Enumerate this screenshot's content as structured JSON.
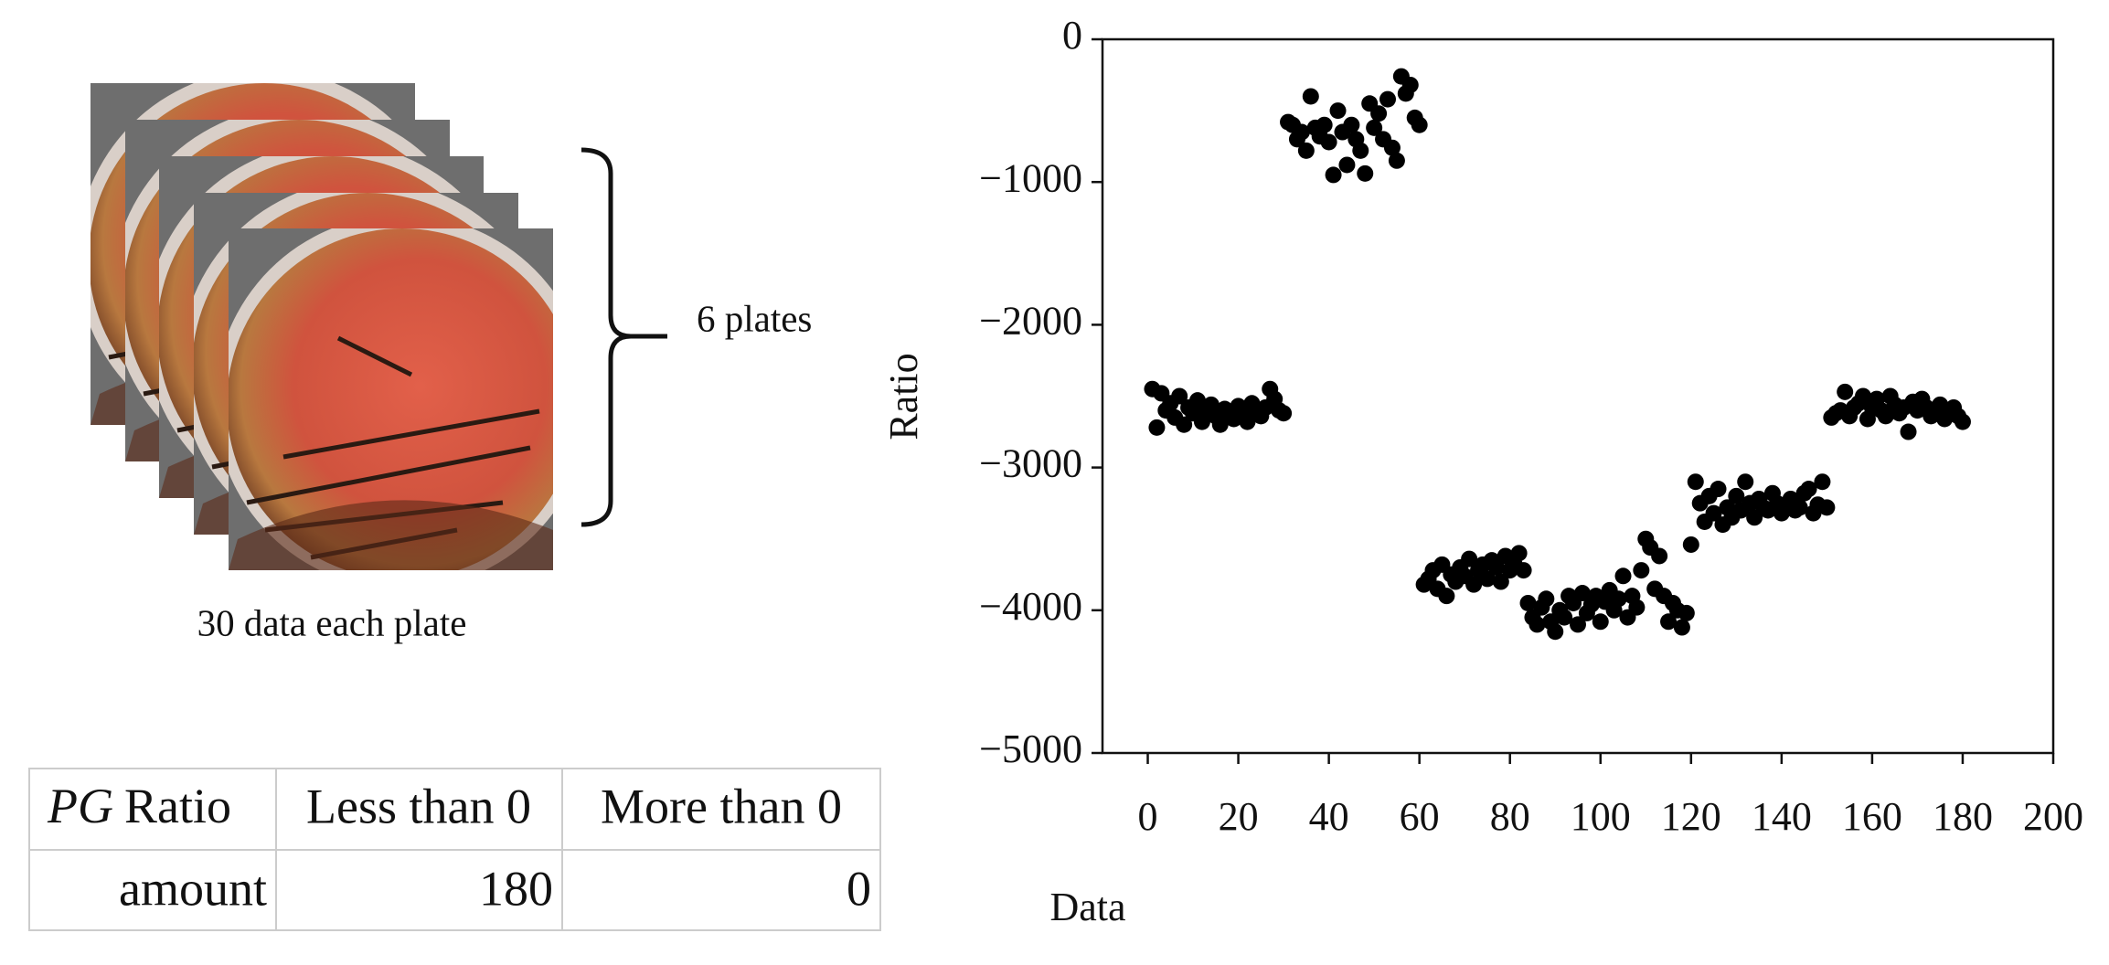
{
  "chart_data": {
    "type": "scatter",
    "xlabel": "Data",
    "ylabel": "Ratio",
    "color": "#000000",
    "x": [
      1,
      2,
      3,
      4,
      5,
      6,
      7,
      8,
      9,
      10,
      11,
      12,
      13,
      14,
      15,
      16,
      17,
      18,
      19,
      20,
      21,
      22,
      23,
      24,
      25,
      26,
      27,
      28,
      29,
      30,
      31,
      32,
      33,
      34,
      35,
      36,
      37,
      38,
      39,
      40,
      41,
      42,
      43,
      44,
      45,
      46,
      47,
      48,
      49,
      50,
      51,
      52,
      53,
      54,
      55,
      56,
      57,
      58,
      59,
      60,
      61,
      62,
      63,
      64,
      65,
      66,
      67,
      68,
      69,
      70,
      71,
      72,
      73,
      74,
      75,
      76,
      77,
      78,
      79,
      80,
      81,
      82,
      83,
      84,
      85,
      86,
      87,
      88,
      89,
      90,
      91,
      92,
      93,
      94,
      95,
      96,
      97,
      98,
      99,
      100,
      101,
      102,
      103,
      104,
      105,
      106,
      107,
      108,
      109,
      110,
      111,
      112,
      113,
      114,
      115,
      116,
      117,
      118,
      119,
      120,
      121,
      122,
      123,
      124,
      125,
      126,
      127,
      128,
      129,
      130,
      131,
      132,
      133,
      134,
      135,
      136,
      137,
      138,
      139,
      140,
      141,
      142,
      143,
      144,
      145,
      146,
      147,
      148,
      149,
      150,
      151,
      152,
      153,
      154,
      155,
      156,
      157,
      158,
      159,
      160,
      161,
      162,
      163,
      164,
      165,
      166,
      167,
      168,
      169,
      170,
      171,
      172,
      173,
      174,
      175,
      176,
      177,
      178,
      179,
      180
    ],
    "values": [
      -2450,
      -2720,
      -2480,
      -2600,
      -2550,
      -2650,
      -2500,
      -2700,
      -2580,
      -2620,
      -2530,
      -2680,
      -2600,
      -2560,
      -2640,
      -2700,
      -2590,
      -2620,
      -2660,
      -2570,
      -2610,
      -2680,
      -2550,
      -2600,
      -2640,
      -2580,
      -2450,
      -2520,
      -2600,
      -2620,
      -580,
      -600,
      -700,
      -650,
      -780,
      -400,
      -620,
      -680,
      -600,
      -720,
      -950,
      -500,
      -650,
      -880,
      -600,
      -700,
      -780,
      -940,
      -450,
      -620,
      -520,
      -700,
      -420,
      -760,
      -850,
      -260,
      -380,
      -320,
      -550,
      -600,
      -3820,
      -3780,
      -3720,
      -3850,
      -3680,
      -3900,
      -3750,
      -3800,
      -3700,
      -3760,
      -3640,
      -3820,
      -3720,
      -3680,
      -3780,
      -3650,
      -3700,
      -3800,
      -3620,
      -3720,
      -3680,
      -3600,
      -3720,
      -3950,
      -4050,
      -4100,
      -3980,
      -3920,
      -4080,
      -4150,
      -4000,
      -4050,
      -3900,
      -3950,
      -4100,
      -3880,
      -4020,
      -3960,
      -3900,
      -4080,
      -3940,
      -3860,
      -4000,
      -3920,
      -3760,
      -4050,
      -3900,
      -3980,
      -3720,
      -3500,
      -3560,
      -3850,
      -3620,
      -3900,
      -4080,
      -3950,
      -4000,
      -4120,
      -4020,
      -3540,
      -3100,
      -3250,
      -3380,
      -3200,
      -3320,
      -3150,
      -3400,
      -3280,
      -3350,
      -3200,
      -3300,
      -3100,
      -3250,
      -3350,
      -3220,
      -3280,
      -3300,
      -3180,
      -3250,
      -3320,
      -3260,
      -3220,
      -3300,
      -3280,
      -3180,
      -3150,
      -3320,
      -3260,
      -3100,
      -3280,
      -2650,
      -2620,
      -2600,
      -2470,
      -2640,
      -2580,
      -2550,
      -2500,
      -2660,
      -2580,
      -2520,
      -2600,
      -2640,
      -2500,
      -2560,
      -2620,
      -2580,
      -2750,
      -2540,
      -2600,
      -2520,
      -2580,
      -2640,
      -2600,
      -2560,
      -2660,
      -2620,
      -2580,
      -2640,
      -2680
    ],
    "xlim": [
      -10,
      200
    ],
    "ylim": [
      -5000,
      0
    ],
    "xticks": [
      0,
      20,
      40,
      60,
      80,
      100,
      120,
      140,
      160,
      180,
      200
    ],
    "yticks": [
      0,
      {
        "value": -1000,
        "label": "−1000"
      },
      {
        "value": -2000,
        "label": "−2000"
      },
      {
        "value": -3000,
        "label": "−3000"
      },
      {
        "value": -4000,
        "label": "−4000"
      },
      {
        "value": -5000,
        "label": "−5000"
      }
    ],
    "grid": false
  },
  "figure": {
    "brace_label": "6 plates",
    "caption": "30 data each plate"
  },
  "table": {
    "header": [
      {
        "italic": "PG",
        "text": "Ratio"
      },
      "Less than 0",
      "More than 0"
    ],
    "rows": [
      [
        "amount",
        180,
        0
      ]
    ]
  }
}
